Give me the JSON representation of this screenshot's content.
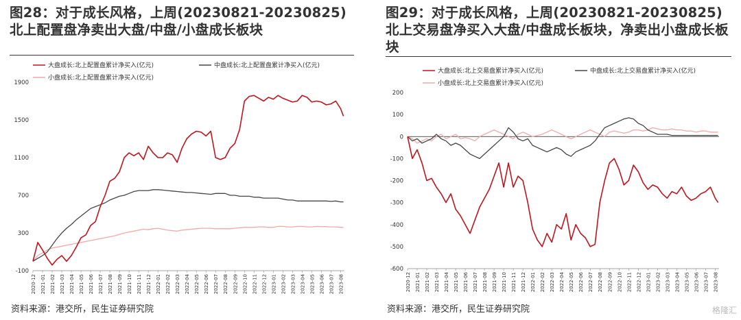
{
  "charts": [
    {
      "id": "left",
      "title": "图28：对于成长风格，上周(20230821-20230825)北上配置盘净卖出大盘/中盘/小盘成长板块",
      "source": "资料来源：港交所，民生证券研究院",
      "chart_data": {
        "type": "line",
        "ylim": [
          -100,
          1900
        ],
        "yticks": [
          -100,
          300,
          700,
          1100,
          1500,
          1900
        ],
        "xticks": [
          "2020-12",
          "2021-01",
          "2021-02",
          "2021-03",
          "2021-04",
          "2021-05",
          "2021-06",
          "2021-07",
          "2021-08",
          "2021-09",
          "2021-10",
          "2021-11",
          "2021-12",
          "2022-01",
          "2022-02",
          "2022-03",
          "2022-04",
          "2022-05",
          "2022-06",
          "2022-07",
          "2022-08",
          "2022-09",
          "2022-10",
          "2022-11",
          "2022-12",
          "2023-01",
          "2023-02",
          "2023-03",
          "2023-04",
          "2023-05",
          "2023-06",
          "2023-07",
          "2023-08"
        ],
        "x": [
          0,
          0.5,
          1,
          1.5,
          2,
          2.5,
          3,
          3.5,
          4,
          4.5,
          5,
          5.5,
          6,
          6.5,
          7,
          7.5,
          8,
          8.5,
          9,
          9.5,
          10,
          10.5,
          11,
          11.5,
          12,
          12.5,
          13,
          13.5,
          14,
          14.5,
          15,
          15.5,
          16,
          16.5,
          17,
          17.5,
          18,
          18.5,
          19,
          19.5,
          20,
          20.5,
          21,
          21.5,
          22,
          22.5,
          23,
          23.5,
          24,
          24.5,
          25,
          25.5,
          26,
          26.5,
          27,
          27.5,
          28,
          28.5,
          29,
          29.5,
          30,
          30.5,
          31,
          31.5,
          32,
          32.3
        ],
        "series": [
          {
            "name": "大盘成长:北上配置盘累计净买入(亿元)",
            "color": "#c0121b",
            "values": [
              0,
              200,
              120,
              30,
              -40,
              20,
              60,
              0,
              60,
              150,
              250,
              280,
              380,
              420,
              580,
              700,
              850,
              880,
              950,
              1100,
              1150,
              1120,
              1150,
              1080,
              1220,
              1150,
              1100,
              1100,
              1150,
              1130,
              1050,
              1200,
              1300,
              1350,
              1380,
              1370,
              1330,
              1380,
              1100,
              1080,
              1100,
              1200,
              1250,
              1400,
              1700,
              1750,
              1760,
              1730,
              1700,
              1740,
              1720,
              1760,
              1730,
              1710,
              1690,
              1700,
              1760,
              1740,
              1690,
              1700,
              1690,
              1660,
              1670,
              1700,
              1620,
              1540
            ]
          },
          {
            "name": "中盘成长:北上配置盘累计净买入(亿元)",
            "color": "#444444",
            "values": [
              0,
              30,
              60,
              100,
              170,
              240,
              300,
              350,
              390,
              440,
              480,
              520,
              560,
              580,
              600,
              620,
              650,
              670,
              690,
              700,
              720,
              740,
              750,
              750,
              750,
              760,
              760,
              755,
              750,
              745,
              740,
              735,
              730,
              730,
              725,
              720,
              715,
              710,
              720,
              720,
              720,
              700,
              700,
              690,
              690,
              690,
              680,
              680,
              670,
              670,
              670,
              670,
              660,
              650,
              650,
              640,
              640,
              640,
              640,
              640,
              640,
              640,
              635,
              640,
              630,
              630
            ]
          },
          {
            "name": "小盘成长:北上配置盘累计净买入(亿元)",
            "color": "#f0a8a8",
            "values": [
              0,
              60,
              90,
              120,
              140,
              150,
              160,
              170,
              180,
              190,
              200,
              210,
              220,
              230,
              240,
              250,
              260,
              270,
              285,
              300,
              310,
              320,
              330,
              340,
              335,
              345,
              350,
              340,
              330,
              325,
              320,
              330,
              335,
              340,
              345,
              350,
              350,
              350,
              345,
              345,
              345,
              345,
              350,
              355,
              360,
              360,
              360,
              365,
              365,
              360,
              360,
              370,
              370,
              365,
              365,
              370,
              370,
              365,
              365,
              370,
              368,
              368,
              365,
              365,
              360,
              360
            ]
          }
        ]
      }
    },
    {
      "id": "right",
      "title": "图29：对于成长风格，上周(20230821-20230825)北上交易盘净买入大盘/中盘成长板块，净卖出小盘成长板块",
      "source": "资料来源：港交所，民生证券研究院",
      "watermark": "格隆汇",
      "chart_data": {
        "type": "line",
        "ylim": [
          -600,
          200
        ],
        "yticks": [
          -600,
          -500,
          -400,
          -300,
          -200,
          -100,
          0,
          100,
          200
        ],
        "xticks": [
          "2020-12",
          "2021-01",
          "2021-02",
          "2021-03",
          "2021-04",
          "2021-05",
          "2021-06",
          "2021-07",
          "2021-08",
          "2021-09",
          "2021-10",
          "2021-11",
          "2021-12",
          "2022-01",
          "2022-02",
          "2022-03",
          "2022-04",
          "2022-05",
          "2022-06",
          "2022-07",
          "2022-08",
          "2022-09",
          "2022-10",
          "2022-11",
          "2022-12",
          "2023-01",
          "2023-02",
          "2023-03",
          "2023-04",
          "2023-05",
          "2023-06",
          "2023-07",
          "2023-08"
        ],
        "x": [
          0,
          0.5,
          1,
          1.5,
          2,
          2.5,
          3,
          3.5,
          4,
          4.5,
          5,
          5.5,
          6,
          6.5,
          7,
          7.5,
          8,
          8.5,
          9,
          9.5,
          10,
          10.5,
          11,
          11.5,
          12,
          12.5,
          13,
          13.5,
          14,
          14.5,
          15,
          15.5,
          16,
          16.5,
          17,
          17.5,
          18,
          18.5,
          19,
          19.5,
          20,
          20.5,
          21,
          21.5,
          22,
          22.5,
          23,
          23.5,
          24,
          24.5,
          25,
          25.5,
          26,
          26.5,
          27,
          27.5,
          28,
          28.5,
          29,
          29.5,
          30,
          30.5,
          31,
          31.5,
          32,
          32.3
        ],
        "series": [
          {
            "name": "大盘成长:北上交易盘累计净买入(亿元)",
            "color": "#c0121b",
            "values": [
              0,
              -100,
              -60,
              -120,
              -200,
              -190,
              -230,
              -260,
              -300,
              -260,
              -330,
              -360,
              -400,
              -440,
              -380,
              -320,
              -280,
              -240,
              -180,
              -120,
              -230,
              -120,
              -230,
              -180,
              -200,
              -300,
              -420,
              -470,
              -500,
              -440,
              -480,
              -400,
              -420,
              -350,
              -470,
              -400,
              -440,
              -460,
              -500,
              -490,
              -300,
              -200,
              -120,
              -100,
              -150,
              -220,
              -200,
              -130,
              -160,
              -210,
              -240,
              -220,
              -230,
              -260,
              -280,
              -250,
              -260,
              -230,
              -270,
              -290,
              -280,
              -260,
              -250,
              -230,
              -280,
              -300
            ]
          },
          {
            "name": "中盘成长:北上交易盘累计净买入(亿元)",
            "color": "#444444",
            "values": [
              0,
              -20,
              -10,
              -30,
              -20,
              -10,
              10,
              -10,
              -20,
              -40,
              -30,
              -40,
              -60,
              -80,
              -90,
              -100,
              -80,
              -60,
              -40,
              -20,
              0,
              40,
              20,
              -10,
              -20,
              -10,
              -40,
              -50,
              -60,
              -70,
              -60,
              -50,
              -60,
              -80,
              -90,
              -70,
              -60,
              -50,
              -40,
              -20,
              10,
              40,
              50,
              60,
              70,
              80,
              85,
              80,
              60,
              50,
              30,
              20,
              10,
              10,
              10,
              5,
              5,
              5,
              5,
              5,
              5,
              5,
              5,
              5,
              5,
              5
            ]
          },
          {
            "name": "小盘成长:北上交易盘累计净买入(亿元)",
            "color": "#f0a8a8",
            "values": [
              0,
              -10,
              -30,
              -20,
              -10,
              -20,
              0,
              10,
              -10,
              0,
              10,
              -10,
              -5,
              -10,
              -20,
              0,
              10,
              20,
              30,
              20,
              10,
              0,
              -10,
              10,
              20,
              10,
              0,
              5,
              10,
              20,
              30,
              20,
              10,
              0,
              -10,
              0,
              10,
              20,
              30,
              20,
              10,
              0,
              20,
              25,
              20,
              15,
              20,
              30,
              30,
              25,
              30,
              40,
              35,
              30,
              30,
              35,
              30,
              30,
              25,
              25,
              20,
              25,
              25,
              20,
              20,
              20
            ]
          }
        ]
      }
    }
  ]
}
